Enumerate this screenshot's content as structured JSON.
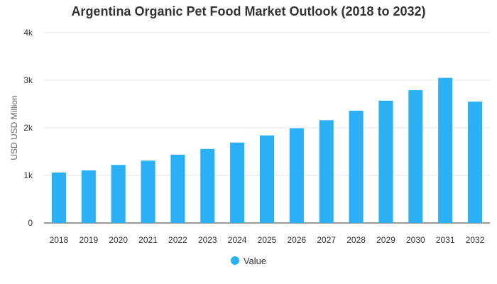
{
  "chart_data": {
    "type": "bar",
    "title": "Argentina Organic Pet Food Market Outlook (2018 to 2032)",
    "xlabel": "",
    "ylabel": "USD USD Million",
    "ylim": [
      0,
      4000
    ],
    "yticks": [
      {
        "value": 0,
        "label": "0"
      },
      {
        "value": 1000,
        "label": "1k"
      },
      {
        "value": 2000,
        "label": "2k"
      },
      {
        "value": 3000,
        "label": "3k"
      },
      {
        "value": 4000,
        "label": "4k"
      }
    ],
    "categories": [
      "2018",
      "2019",
      "2020",
      "2021",
      "2022",
      "2023",
      "2024",
      "2025",
      "2026",
      "2027",
      "2028",
      "2029",
      "2030",
      "2031",
      "2032"
    ],
    "series": [
      {
        "name": "Value",
        "color": "#2BB0F5",
        "values": [
          1060,
          1105,
          1220,
          1310,
          1435,
          1555,
          1690,
          1840,
          1990,
          2160,
          2360,
          2570,
          2790,
          3050,
          2550
        ]
      }
    ],
    "grid": true,
    "legend_position": "bottom"
  }
}
